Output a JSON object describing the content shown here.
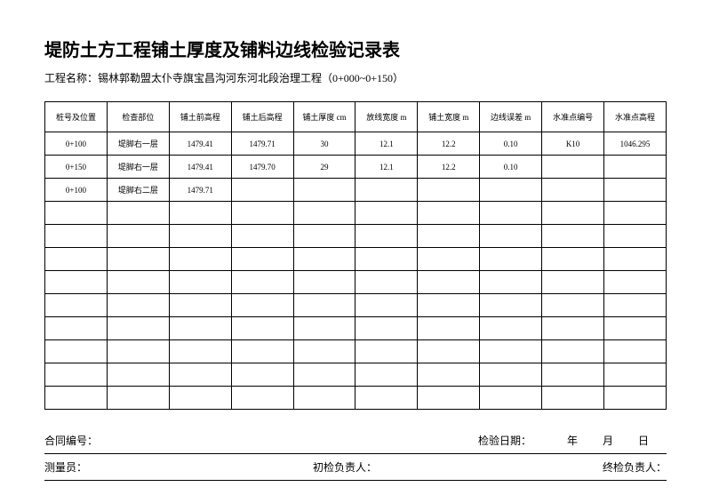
{
  "title": "堤防土方工程铺土厚度及铺料边线检验记录表",
  "subtitle_label": "工程名称：",
  "subtitle_value": "锡林郭勒盟太仆寺旗宝昌沟河东河北段治理工程（0+000~0+150）",
  "table": {
    "columns": [
      "桩号及位置",
      "检查部位",
      "铺土前高程",
      "铺土后高程",
      "铺土厚度 cm",
      "放线宽度 m",
      "铺土宽度 m",
      "边线误差 m",
      "水准点编号",
      "水准点高程"
    ],
    "rows": [
      [
        "0+100",
        "堤脚右一层",
        "1479.41",
        "1479.71",
        "30",
        "12.1",
        "12.2",
        "0.10",
        "K10",
        "1046.295"
      ],
      [
        "0+150",
        "堤脚右一层",
        "1479.41",
        "1479.70",
        "29",
        "12.1",
        "12.2",
        "0.10",
        "",
        ""
      ],
      [
        "0+100",
        "堤脚右二层",
        "1479.71",
        "",
        "",
        "",
        "",
        "",
        "",
        ""
      ],
      [
        "",
        "",
        "",
        "",
        "",
        "",
        "",
        "",
        "",
        ""
      ],
      [
        "",
        "",
        "",
        "",
        "",
        "",
        "",
        "",
        "",
        ""
      ],
      [
        "",
        "",
        "",
        "",
        "",
        "",
        "",
        "",
        "",
        ""
      ],
      [
        "",
        "",
        "",
        "",
        "",
        "",
        "",
        "",
        "",
        ""
      ],
      [
        "",
        "",
        "",
        "",
        "",
        "",
        "",
        "",
        "",
        ""
      ],
      [
        "",
        "",
        "",
        "",
        "",
        "",
        "",
        "",
        "",
        ""
      ],
      [
        "",
        "",
        "",
        "",
        "",
        "",
        "",
        "",
        "",
        ""
      ],
      [
        "",
        "",
        "",
        "",
        "",
        "",
        "",
        "",
        "",
        ""
      ],
      [
        "",
        "",
        "",
        "",
        "",
        "",
        "",
        "",
        "",
        ""
      ]
    ]
  },
  "footer": {
    "contract_label": "合同编号：",
    "inspect_date_label": "检验日期：",
    "year_label": "年",
    "month_label": "月",
    "day_label": "日",
    "surveyor_label": "测量员：",
    "initial_check_label": "初检负责人：",
    "final_check_label": "终检负责人："
  }
}
